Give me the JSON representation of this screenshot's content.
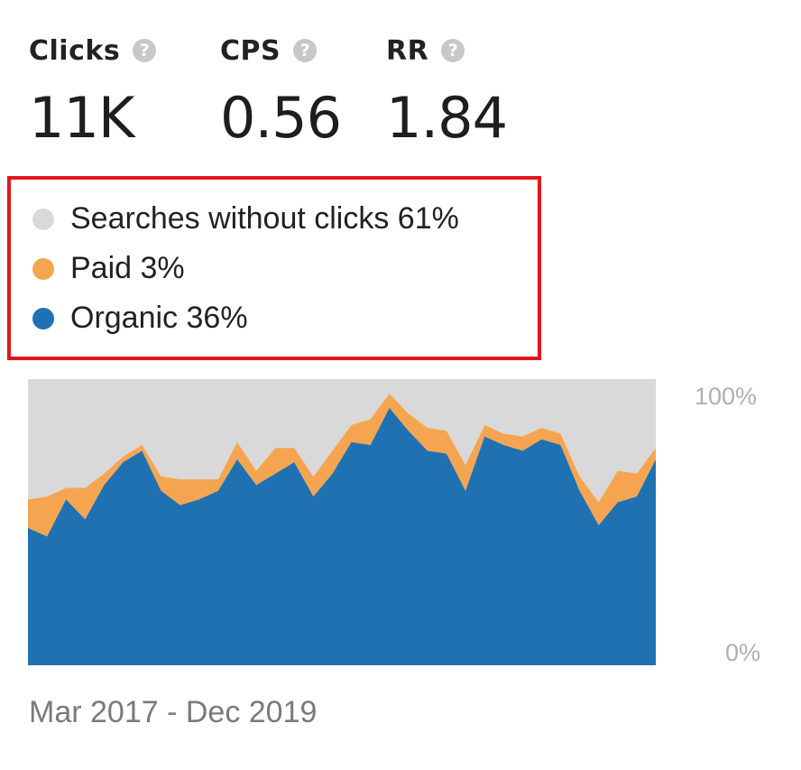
{
  "metrics": [
    {
      "label": "Clicks",
      "value": "11K"
    },
    {
      "label": "CPS",
      "value": "0.56"
    },
    {
      "label": "RR",
      "value": "1.84"
    }
  ],
  "help_icon": "question-mark-icon",
  "legend": [
    {
      "label": "Searches without clicks 61%",
      "color": "#d9d9d9"
    },
    {
      "label": "Paid 3%",
      "color": "#f5a550"
    },
    {
      "label": "Organic 36%",
      "color": "#2071b1"
    }
  ],
  "highlight_color": "#e4151d",
  "period": "Mar 2017 - Dec 2019",
  "chart_data": {
    "type": "area",
    "stacked": true,
    "percent_scale": true,
    "y_ticks": [
      "100%",
      "0%"
    ],
    "ylim": [
      0,
      100
    ],
    "x_range": "Mar 2017 - Dec 2019",
    "series": [
      {
        "name": "Organic",
        "color": "#2071b1",
        "values": [
          48,
          45,
          58,
          51,
          63,
          71,
          75,
          61,
          56,
          58,
          61,
          72,
          63,
          67,
          71,
          59,
          67,
          78,
          77,
          90,
          82,
          75,
          74,
          61,
          80,
          77,
          75,
          79,
          77,
          61,
          49,
          57,
          59,
          72
        ]
      },
      {
        "name": "Paid",
        "color": "#f5a550",
        "values": [
          10,
          14,
          4,
          11,
          4,
          2,
          2,
          5,
          9,
          7,
          4,
          6,
          5,
          9,
          5,
          7,
          8,
          6,
          9,
          5,
          6,
          8,
          8,
          9,
          4,
          4,
          5,
          4,
          4,
          5,
          8,
          11,
          8,
          4
        ]
      },
      {
        "name": "Searches without clicks",
        "color": "#d9d9d9",
        "values": [
          42,
          41,
          38,
          38,
          33,
          27,
          23,
          34,
          35,
          35,
          35,
          22,
          32,
          24,
          24,
          34,
          25,
          16,
          14,
          5,
          12,
          17,
          18,
          30,
          16,
          19,
          20,
          17,
          19,
          34,
          43,
          32,
          33,
          24
        ]
      }
    ]
  }
}
